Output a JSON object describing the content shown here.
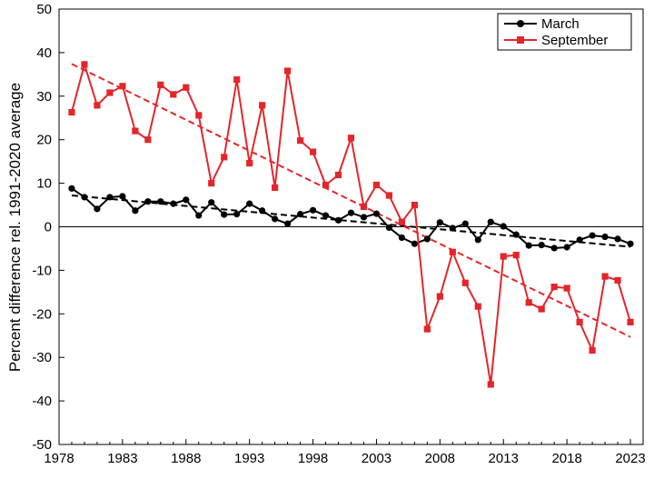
{
  "chart_data": {
    "type": "line",
    "xlabel": "",
    "ylabel": "Percent difference rel. 1991-2020 average",
    "xlim": [
      1978,
      2024
    ],
    "ylim": [
      -50,
      50
    ],
    "xticks": [
      1978,
      1983,
      1988,
      1993,
      1998,
      2003,
      2008,
      2013,
      2018,
      2023
    ],
    "yticks": [
      -50,
      -40,
      -30,
      -20,
      -10,
      0,
      10,
      20,
      30,
      40,
      50
    ],
    "grid": false,
    "legend_position": "top-right",
    "zero_line": true,
    "x": [
      1979,
      1980,
      1981,
      1982,
      1983,
      1984,
      1985,
      1986,
      1987,
      1988,
      1989,
      1990,
      1991,
      1992,
      1993,
      1994,
      1995,
      1996,
      1997,
      1998,
      1999,
      2000,
      2001,
      2002,
      2003,
      2004,
      2005,
      2006,
      2007,
      2008,
      2009,
      2010,
      2011,
      2012,
      2013,
      2014,
      2015,
      2016,
      2017,
      2018,
      2019,
      2020,
      2021,
      2022,
      2023
    ],
    "series": [
      {
        "name": "March",
        "color": "#000000",
        "marker": "circle",
        "values": [
          8.8,
          6.8,
          4.1,
          6.8,
          7.0,
          3.7,
          5.8,
          5.8,
          5.3,
          6.2,
          2.6,
          5.6,
          2.8,
          2.9,
          5.3,
          3.7,
          1.8,
          0.7,
          2.9,
          3.8,
          2.6,
          1.5,
          3.2,
          2.2,
          3.0,
          -0.2,
          -2.5,
          -3.9,
          -2.8,
          1.0,
          -0.3,
          0.7,
          -3.0,
          1.1,
          0.1,
          -1.8,
          -4.3,
          -4.2,
          -4.9,
          -4.7,
          -3.0,
          -2.0,
          -2.3,
          -2.8,
          -3.9
        ]
      },
      {
        "name": "September",
        "color": "#e3262b",
        "marker": "square",
        "values": [
          26.3,
          37.3,
          27.9,
          30.8,
          32.3,
          22.0,
          20.0,
          32.6,
          30.4,
          32.0,
          25.6,
          10.0,
          16.0,
          33.8,
          14.6,
          27.9,
          9.0,
          35.8,
          19.8,
          17.2,
          9.6,
          11.9,
          20.4,
          4.6,
          9.6,
          7.2,
          1.1,
          5.0,
          -23.5,
          -16.0,
          -5.8,
          -12.9,
          -18.3,
          -36.2,
          -6.8,
          -6.5,
          -17.4,
          -18.9,
          -13.8,
          -14.1,
          -21.9,
          -28.4,
          -11.4,
          -12.3,
          -21.9
        ]
      }
    ],
    "trendlines": [
      {
        "series": "March",
        "color": "#000000",
        "style": "dashed",
        "y_start": 7.2,
        "y_end": -4.6
      },
      {
        "series": "September",
        "color": "#e3262b",
        "style": "dashed",
        "y_start": 37.4,
        "y_end": -25.3
      }
    ]
  }
}
